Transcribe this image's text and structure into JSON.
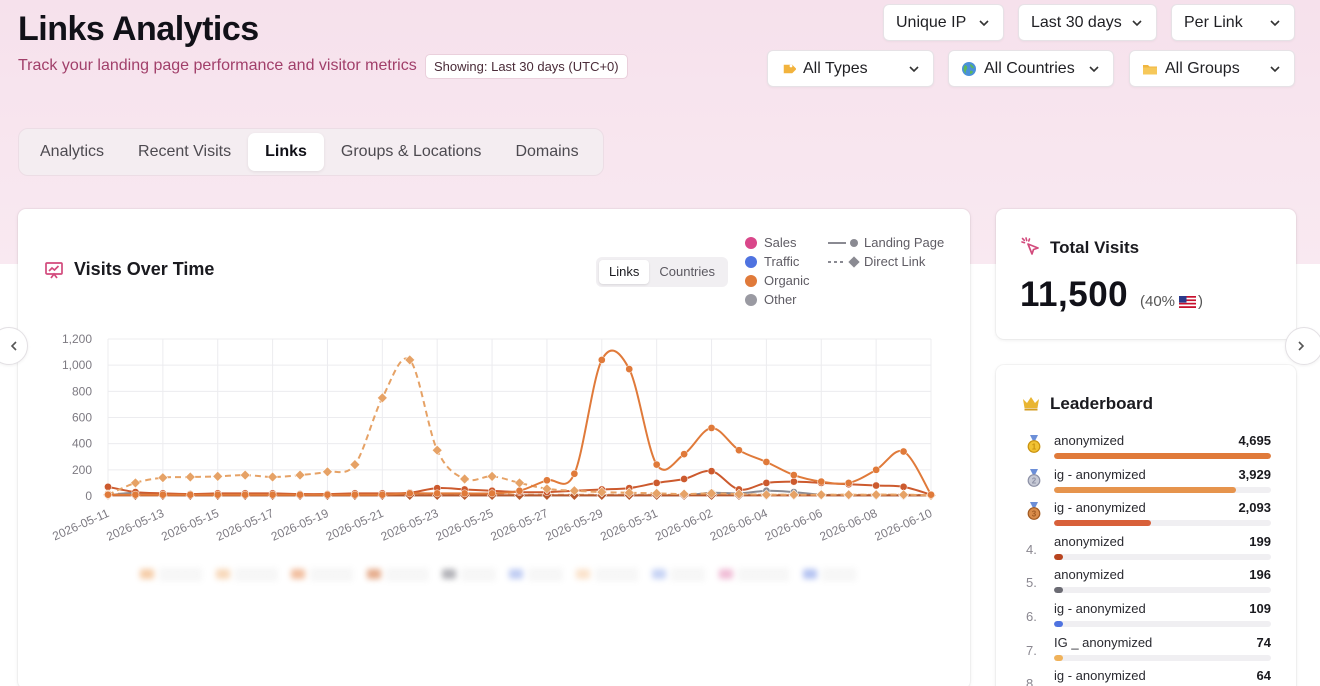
{
  "header": {
    "title": "Links Analytics",
    "subtitle": "Track your landing page performance and visitor metrics",
    "showing_badge": "Showing: Last 30 days (UTC+0)"
  },
  "filters": {
    "metric": "Unique IP",
    "range": "Last 30 days",
    "grouping": "Per Link",
    "types": "All Types",
    "countries": "All Countries",
    "groups": "All Groups"
  },
  "tabs": [
    {
      "label": "Analytics",
      "active": false
    },
    {
      "label": "Recent Visits",
      "active": false
    },
    {
      "label": "Links",
      "active": true
    },
    {
      "label": "Groups & Locations",
      "active": false
    },
    {
      "label": "Domains",
      "active": false
    }
  ],
  "chart_panel": {
    "title": "Visits Over Time",
    "toggle": [
      "Links",
      "Countries"
    ],
    "toggle_active": "Links",
    "legend_categories": [
      {
        "label": "Sales",
        "color": "#d9478a"
      },
      {
        "label": "Traffic",
        "color": "#4f73e0"
      },
      {
        "label": "Organic",
        "color": "#e07a3a"
      },
      {
        "label": "Other",
        "color": "#9a9aa2"
      }
    ],
    "legend_styles": [
      "Landing Page",
      "Direct Link"
    ]
  },
  "chart_data": {
    "type": "line",
    "x": [
      "2026-05-11",
      "2026-05-12",
      "2026-05-13",
      "2026-05-14",
      "2026-05-15",
      "2026-05-16",
      "2026-05-17",
      "2026-05-18",
      "2026-05-19",
      "2026-05-20",
      "2026-05-21",
      "2026-05-22",
      "2026-05-23",
      "2026-05-24",
      "2026-05-25",
      "2026-05-26",
      "2026-05-27",
      "2026-05-28",
      "2026-05-29",
      "2026-05-30",
      "2026-05-31",
      "2026-06-01",
      "2026-06-02",
      "2026-06-03",
      "2026-06-04",
      "2026-06-05",
      "2026-06-06",
      "2026-06-07",
      "2026-06-08",
      "2026-06-09",
      "2026-06-10"
    ],
    "xticks": [
      "2026-05-11",
      "2026-05-13",
      "2026-05-15",
      "2026-05-17",
      "2026-05-19",
      "2026-05-21",
      "2026-05-23",
      "2026-05-25",
      "2026-05-27",
      "2026-05-29",
      "2026-05-31",
      "2026-06-02",
      "2026-06-04",
      "2026-06-06",
      "2026-06-08",
      "2026-06-10"
    ],
    "yticks": [
      "0",
      "200",
      "400",
      "600",
      "800",
      "1,000",
      "1,200"
    ],
    "ylim": [
      0,
      1200
    ],
    "grid": true,
    "series": [
      {
        "color": "#e6a266",
        "style": "dashed",
        "marker": "diamond",
        "values": [
          10,
          100,
          140,
          145,
          150,
          160,
          145,
          160,
          185,
          240,
          750,
          1040,
          350,
          130,
          150,
          100,
          55,
          40,
          30,
          25,
          20,
          15,
          20,
          15,
          10,
          10,
          10,
          10,
          10,
          10,
          5
        ]
      },
      {
        "color": "#e07a3a",
        "style": "solid",
        "marker": "circle",
        "values": [
          10,
          10,
          10,
          10,
          10,
          10,
          10,
          10,
          10,
          10,
          10,
          20,
          20,
          20,
          20,
          40,
          120,
          170,
          1040,
          970,
          240,
          320,
          520,
          350,
          260,
          160,
          110,
          100,
          200,
          340,
          10
        ]
      },
      {
        "color": "#cc5a2e",
        "style": "solid",
        "marker": "circle",
        "values": [
          70,
          30,
          20,
          15,
          20,
          20,
          20,
          15,
          15,
          20,
          20,
          25,
          60,
          50,
          40,
          30,
          30,
          40,
          50,
          60,
          100,
          130,
          190,
          50,
          100,
          110,
          100,
          90,
          80,
          70,
          10
        ]
      },
      {
        "color": "#b8592d",
        "style": "solid",
        "marker": "diamond",
        "values": [
          5,
          5,
          5,
          5,
          5,
          5,
          5,
          5,
          5,
          5,
          5,
          5,
          5,
          5,
          5,
          5,
          5,
          5,
          5,
          5,
          5,
          5,
          5,
          5,
          5,
          5,
          5,
          5,
          5,
          5,
          5
        ]
      },
      {
        "color": "#8a8a92",
        "style": "solid",
        "marker": "circle",
        "values": [
          5,
          25,
          10,
          5,
          5,
          5,
          5,
          5,
          5,
          5,
          5,
          5,
          5,
          5,
          5,
          5,
          5,
          5,
          5,
          5,
          5,
          5,
          25,
          20,
          40,
          30,
          10,
          5,
          5,
          5,
          5
        ]
      },
      {
        "color": "#f0b27a",
        "style": "dashed",
        "marker": "circle",
        "values": [
          20,
          15,
          15,
          10,
          10,
          10,
          10,
          10,
          10,
          10,
          10,
          10,
          10,
          10,
          20,
          10,
          10,
          10,
          10,
          10,
          10,
          10,
          10,
          10,
          10,
          10,
          10,
          10,
          10,
          10,
          5
        ]
      }
    ]
  },
  "total_visits": {
    "title": "Total Visits",
    "value": "11,500",
    "share_open": "(40%",
    "share_close": ")"
  },
  "leaderboard": {
    "title": "Leaderboard",
    "items": [
      {
        "rank": "1",
        "medal": "gold",
        "name": "anonymized",
        "count": "4,695",
        "fraction": 1.0,
        "color": "#e07a3a"
      },
      {
        "rank": "2",
        "medal": "silver",
        "name": "ig - anonymized",
        "count": "3,929",
        "fraction": 0.837,
        "color": "#e6944d"
      },
      {
        "rank": "3",
        "medal": "bronze",
        "name": "ig - anonymized",
        "count": "2,093",
        "fraction": 0.446,
        "color": "#d8603a"
      },
      {
        "rank": "4.",
        "medal": "",
        "name": "anonymized",
        "count": "199",
        "fraction": 0.042,
        "color": "#b8441f"
      },
      {
        "rank": "5.",
        "medal": "",
        "name": "anonymized",
        "count": "196",
        "fraction": 0.042,
        "color": "#6b6b73"
      },
      {
        "rank": "6.",
        "medal": "",
        "name": "ig - anonymized",
        "count": "109",
        "fraction": 0.023,
        "color": "#4f73e0"
      },
      {
        "rank": "7.",
        "medal": "",
        "name": "IG _ anonymized",
        "count": "74",
        "fraction": 0.016,
        "color": "#f0b25a"
      },
      {
        "rank": "8.",
        "medal": "",
        "name": "ig - anonymized",
        "count": "64",
        "fraction": 0.014,
        "color": "#e07a3a"
      }
    ]
  },
  "icons": {
    "chevron": "chevron-down-icon",
    "types": "tag-icon",
    "countries": "globe-icon",
    "groups": "folder-icon",
    "chart": "chart-presentation-icon",
    "total": "cursor-click-icon",
    "leader": "crown-icon",
    "prev": "chevron-left-icon",
    "next": "chevron-right-icon",
    "flag": "us-flag-icon"
  }
}
